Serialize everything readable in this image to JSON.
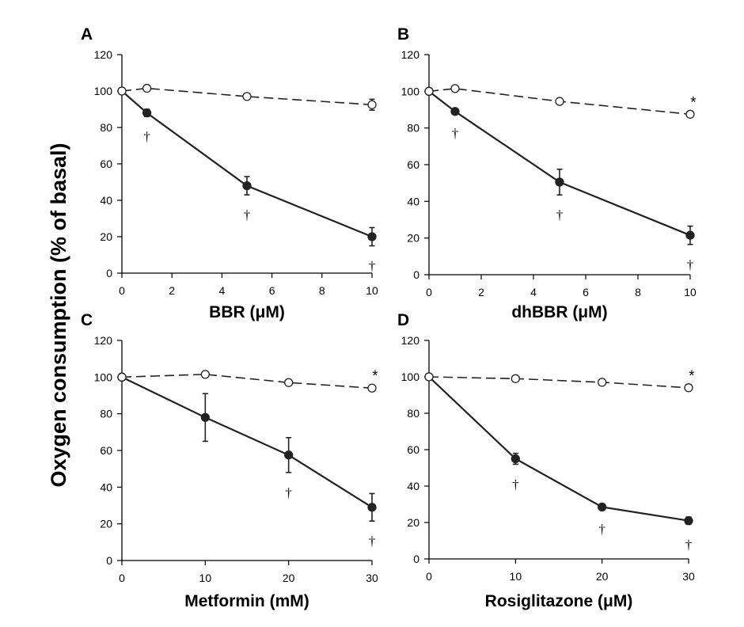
{
  "ylabel": "Oxygen consumption (% of basal)",
  "chart_data": [
    {
      "type": "line",
      "panel": "A",
      "xlabel": "BBR (μM)",
      "xlim": [
        0,
        10
      ],
      "xticks": [
        0,
        2,
        4,
        6,
        8,
        10
      ],
      "ylim": [
        0,
        120
      ],
      "yticks": [
        0,
        20,
        40,
        60,
        80,
        100,
        120
      ],
      "series": [
        {
          "style": "solid-filled",
          "x": [
            0,
            1,
            5,
            10
          ],
          "y": [
            100,
            88,
            48,
            20
          ],
          "err": [
            0,
            2,
            5,
            5
          ],
          "annotations": [
            "",
            "†",
            "†",
            "†"
          ]
        },
        {
          "style": "dashed-open",
          "x": [
            0,
            1,
            5,
            10
          ],
          "y": [
            100,
            101.5,
            97,
            92.5
          ],
          "err": [
            0,
            1.5,
            1.5,
            3
          ],
          "annotations": [
            "",
            "",
            "",
            ""
          ]
        }
      ]
    },
    {
      "type": "line",
      "panel": "B",
      "xlabel": "dhBBR (μM)",
      "xlim": [
        0,
        10
      ],
      "xticks": [
        0,
        2,
        4,
        6,
        8,
        10
      ],
      "ylim": [
        0,
        120
      ],
      "yticks": [
        0,
        20,
        40,
        60,
        80,
        100,
        120
      ],
      "series": [
        {
          "style": "solid-filled",
          "x": [
            0,
            1,
            5,
            10
          ],
          "y": [
            100,
            89,
            50.5,
            21.5
          ],
          "err": [
            0,
            1,
            7,
            5
          ],
          "annotations": [
            "",
            "†",
            "†",
            "†"
          ]
        },
        {
          "style": "dashed-open",
          "x": [
            0,
            1,
            5,
            10
          ],
          "y": [
            100,
            101.5,
            94.5,
            87.5
          ],
          "err": [
            0,
            1,
            1,
            1
          ],
          "annotations": [
            "",
            "",
            "",
            "*"
          ]
        }
      ]
    },
    {
      "type": "line",
      "panel": "C",
      "xlabel": "Metformin (mM)",
      "xlim": [
        0,
        30
      ],
      "xticks": [
        0,
        10,
        20,
        30
      ],
      "ylim": [
        0,
        120
      ],
      "yticks": [
        0,
        20,
        40,
        60,
        80,
        100,
        120
      ],
      "series": [
        {
          "style": "solid-filled",
          "x": [
            0,
            10,
            20,
            30
          ],
          "y": [
            100,
            78,
            57.5,
            29
          ],
          "err": [
            0,
            13,
            9.5,
            7.5
          ],
          "annotations": [
            "",
            "",
            "†",
            "†"
          ]
        },
        {
          "style": "dashed-open",
          "x": [
            0,
            10,
            20,
            30
          ],
          "y": [
            100,
            101.5,
            97,
            94
          ],
          "err": [
            0,
            1,
            1,
            1
          ],
          "annotations": [
            "",
            "",
            "",
            "*"
          ]
        }
      ]
    },
    {
      "type": "line",
      "panel": "D",
      "xlabel": "Rosiglitazone (μM)",
      "xlim": [
        0,
        30
      ],
      "xticks": [
        0,
        10,
        20,
        30
      ],
      "ylim": [
        0,
        120
      ],
      "yticks": [
        0,
        20,
        40,
        60,
        80,
        100,
        120
      ],
      "series": [
        {
          "style": "solid-filled",
          "x": [
            0,
            10,
            20,
            30
          ],
          "y": [
            100,
            55,
            28.5,
            21
          ],
          "err": [
            0,
            3,
            1,
            2
          ],
          "annotations": [
            "",
            "†",
            "†",
            "†"
          ]
        },
        {
          "style": "dashed-open",
          "x": [
            0,
            10,
            20,
            30
          ],
          "y": [
            100,
            99,
            97,
            94
          ],
          "err": [
            0,
            1,
            1,
            1
          ],
          "annotations": [
            "",
            "",
            "",
            "*"
          ]
        }
      ]
    }
  ]
}
